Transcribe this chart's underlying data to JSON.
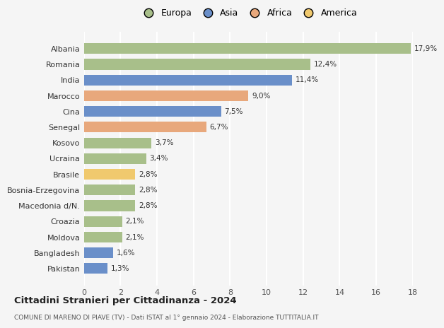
{
  "countries": [
    "Pakistan",
    "Bangladesh",
    "Moldova",
    "Croazia",
    "Macedonia d/N.",
    "Bosnia-Erzegovina",
    "Brasile",
    "Ucraina",
    "Kosovo",
    "Senegal",
    "Cina",
    "Marocco",
    "India",
    "Romania",
    "Albania"
  ],
  "values": [
    1.3,
    1.6,
    2.1,
    2.1,
    2.8,
    2.8,
    2.8,
    3.4,
    3.7,
    6.7,
    7.5,
    9.0,
    11.4,
    12.4,
    17.9
  ],
  "labels": [
    "1,3%",
    "1,6%",
    "2,1%",
    "2,1%",
    "2,8%",
    "2,8%",
    "2,8%",
    "3,4%",
    "3,7%",
    "6,7%",
    "7,5%",
    "9,0%",
    "11,4%",
    "12,4%",
    "17,9%"
  ],
  "colors": [
    "#6a8fc9",
    "#6a8fc9",
    "#a8bf8a",
    "#a8bf8a",
    "#a8bf8a",
    "#a8bf8a",
    "#f0c96e",
    "#a8bf8a",
    "#a8bf8a",
    "#e8a87c",
    "#6a8fc9",
    "#e8a87c",
    "#6a8fc9",
    "#a8bf8a",
    "#a8bf8a"
  ],
  "legend": [
    {
      "label": "Europa",
      "color": "#a8bf8a"
    },
    {
      "label": "Asia",
      "color": "#6a8fc9"
    },
    {
      "label": "Africa",
      "color": "#e8a87c"
    },
    {
      "label": "America",
      "color": "#f0c96e"
    }
  ],
  "title": "Cittadini Stranieri per Cittadinanza - 2024",
  "subtitle": "COMUNE DI MARENO DI PIAVE (TV) - Dati ISTAT al 1° gennaio 2024 - Elaborazione TUTTITALIA.IT",
  "xlim": [
    0,
    18
  ],
  "xticks": [
    0,
    2,
    4,
    6,
    8,
    10,
    12,
    14,
    16,
    18
  ],
  "background_color": "#f5f5f5",
  "grid_color": "#ffffff",
  "bar_height": 0.68
}
